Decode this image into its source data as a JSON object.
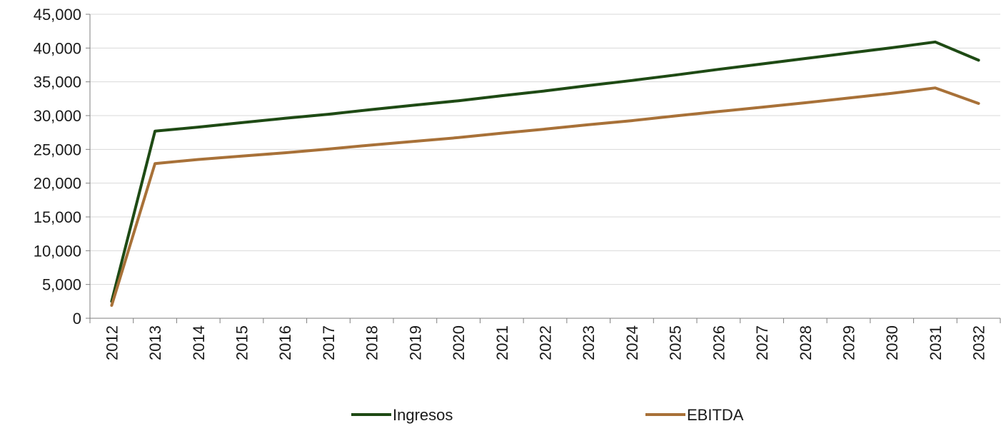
{
  "chart_data": {
    "type": "line",
    "x": [
      "2012",
      "2013",
      "2014",
      "2015",
      "2016",
      "2017",
      "2018",
      "2019",
      "2020",
      "2021",
      "2022",
      "2023",
      "2024",
      "2025",
      "2026",
      "2027",
      "2028",
      "2029",
      "2030",
      "2031",
      "2032"
    ],
    "series": [
      {
        "name": "Ingresos",
        "color": "#1e4a14",
        "values": [
          2500,
          27700,
          28300,
          28950,
          29600,
          30200,
          30900,
          31550,
          32200,
          32950,
          33650,
          34450,
          35200,
          36000,
          36850,
          37650,
          38450,
          39250,
          40050,
          40900,
          38200
        ]
      },
      {
        "name": "EBITDA",
        "color": "#a87138",
        "values": [
          1900,
          22900,
          23500,
          24000,
          24500,
          25050,
          25650,
          26200,
          26750,
          27400,
          28000,
          28650,
          29250,
          29950,
          30600,
          31250,
          31900,
          32600,
          33300,
          34100,
          31800
        ]
      }
    ],
    "y_ticks": [
      "0",
      "5,000",
      "10,000",
      "15,000",
      "20,000",
      "25,000",
      "30,000",
      "35,000",
      "40,000",
      "45,000"
    ],
    "ylim": [
      0,
      45000
    ],
    "grid": true,
    "legend_position": "bottom"
  }
}
